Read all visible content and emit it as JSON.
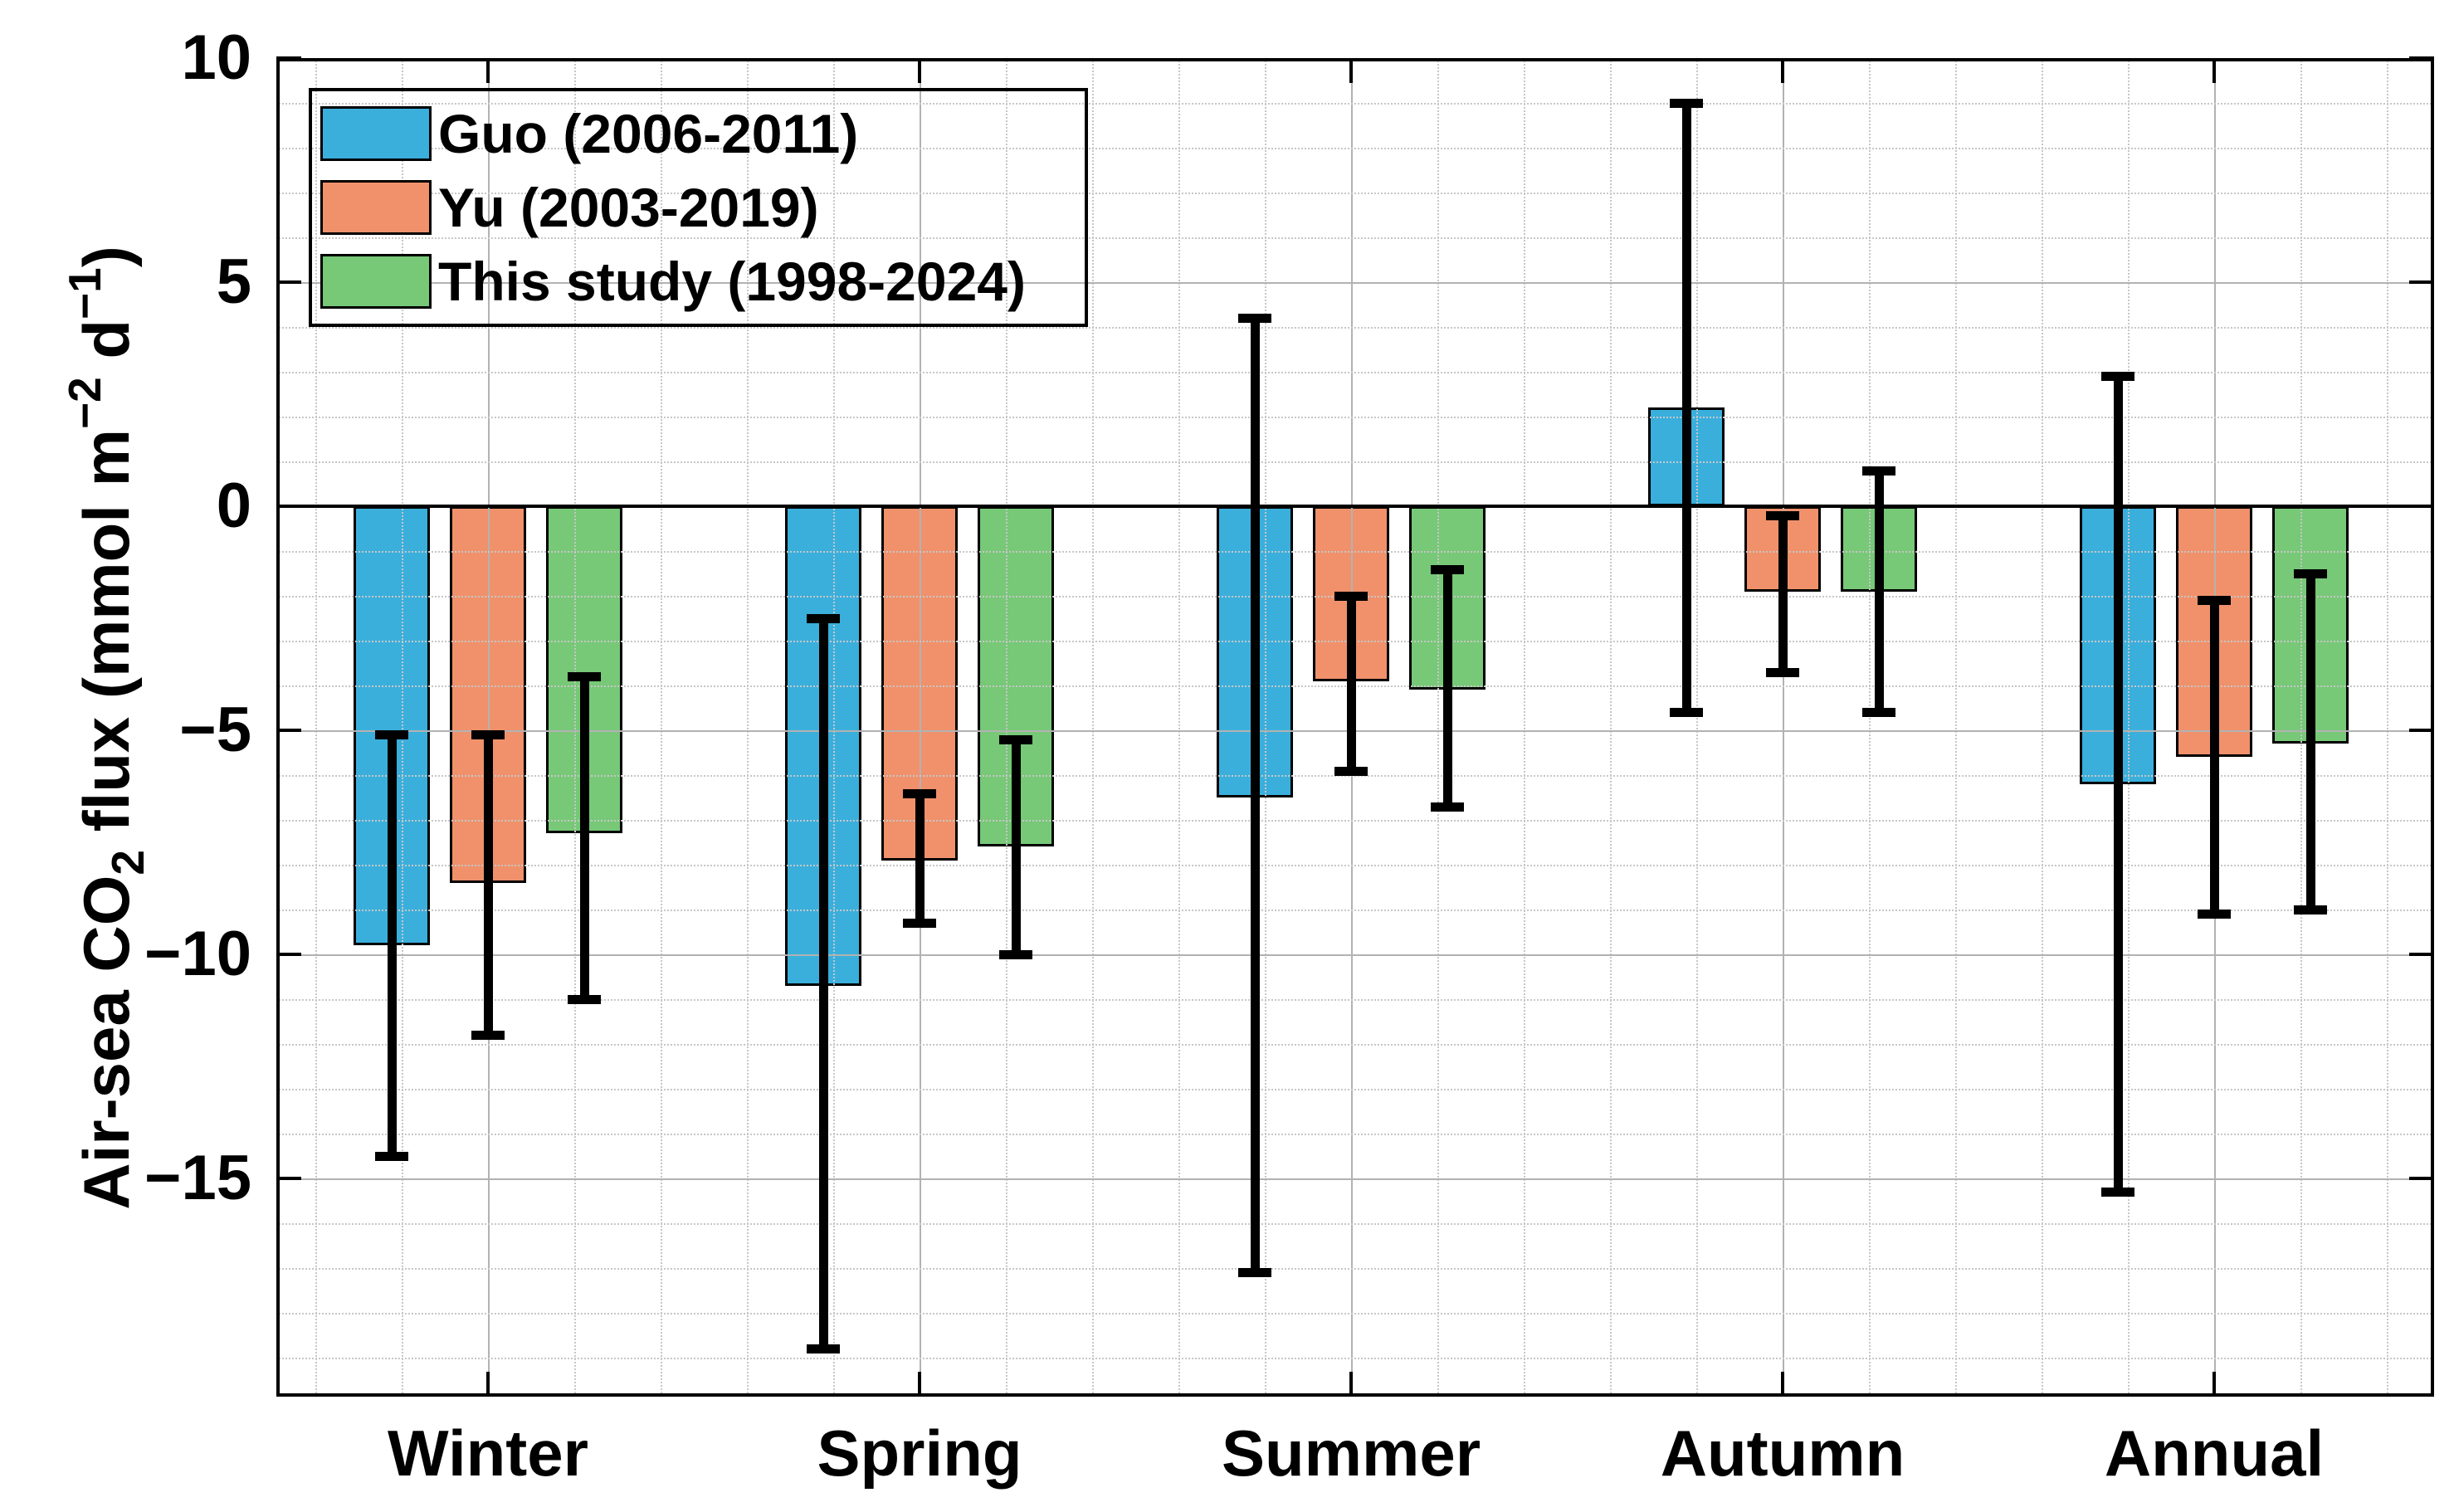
{
  "y_axis": {
    "ticks": [
      "10",
      "5",
      "0",
      "−5",
      "−10",
      "−15"
    ],
    "label_parts": {
      "pre": "Air-sea CO",
      "sub": "2",
      "mid1": " flux (mmol m",
      "sup1": "−2",
      "mid2": " d",
      "sup2": "−1",
      "post": ")"
    }
  },
  "chart_data": {
    "type": "bar",
    "title": "",
    "xlabel": "",
    "ylabel": "Air-sea CO2 flux (mmol m^-2 d^-1)",
    "categories": [
      "Winter",
      "Spring",
      "Summer",
      "Autumn",
      "Annual"
    ],
    "ylim": [
      -19.9,
      10
    ],
    "ytick_values": [
      10,
      5,
      0,
      -5,
      -10,
      -15
    ],
    "grid": "major solid + minor dotted, drawn above bars",
    "legend_position": "northwest",
    "zero_line": true,
    "error_bar_color": "#000000",
    "series": [
      {
        "name": "Guo (2006-2011)",
        "color": "#3aafdc",
        "values": [
          -9.8,
          -10.7,
          -6.5,
          2.2,
          -6.2
        ],
        "error_high": [
          -5.1,
          -2.5,
          4.2,
          9.0,
          2.9
        ],
        "error_low": [
          -14.5,
          -18.8,
          -17.1,
          -4.6,
          -15.3
        ]
      },
      {
        "name": "Yu (2003-2019)",
        "color": "#f0916b",
        "values": [
          -8.4,
          -7.9,
          -3.9,
          -1.9,
          -5.6
        ],
        "error_high": [
          -5.1,
          -6.4,
          -2.0,
          -0.2,
          -2.1
        ],
        "error_low": [
          -11.8,
          -9.3,
          -5.9,
          -3.7,
          -9.1
        ]
      },
      {
        "name": "This study (1998-2024)",
        "color": "#77c877",
        "values": [
          -7.3,
          -7.6,
          -4.1,
          -1.9,
          -5.3
        ],
        "error_high": [
          -3.8,
          -5.2,
          -1.4,
          0.8,
          -1.5
        ],
        "error_low": [
          -11.0,
          -10.0,
          -6.7,
          -4.6,
          -9.0
        ]
      }
    ]
  }
}
